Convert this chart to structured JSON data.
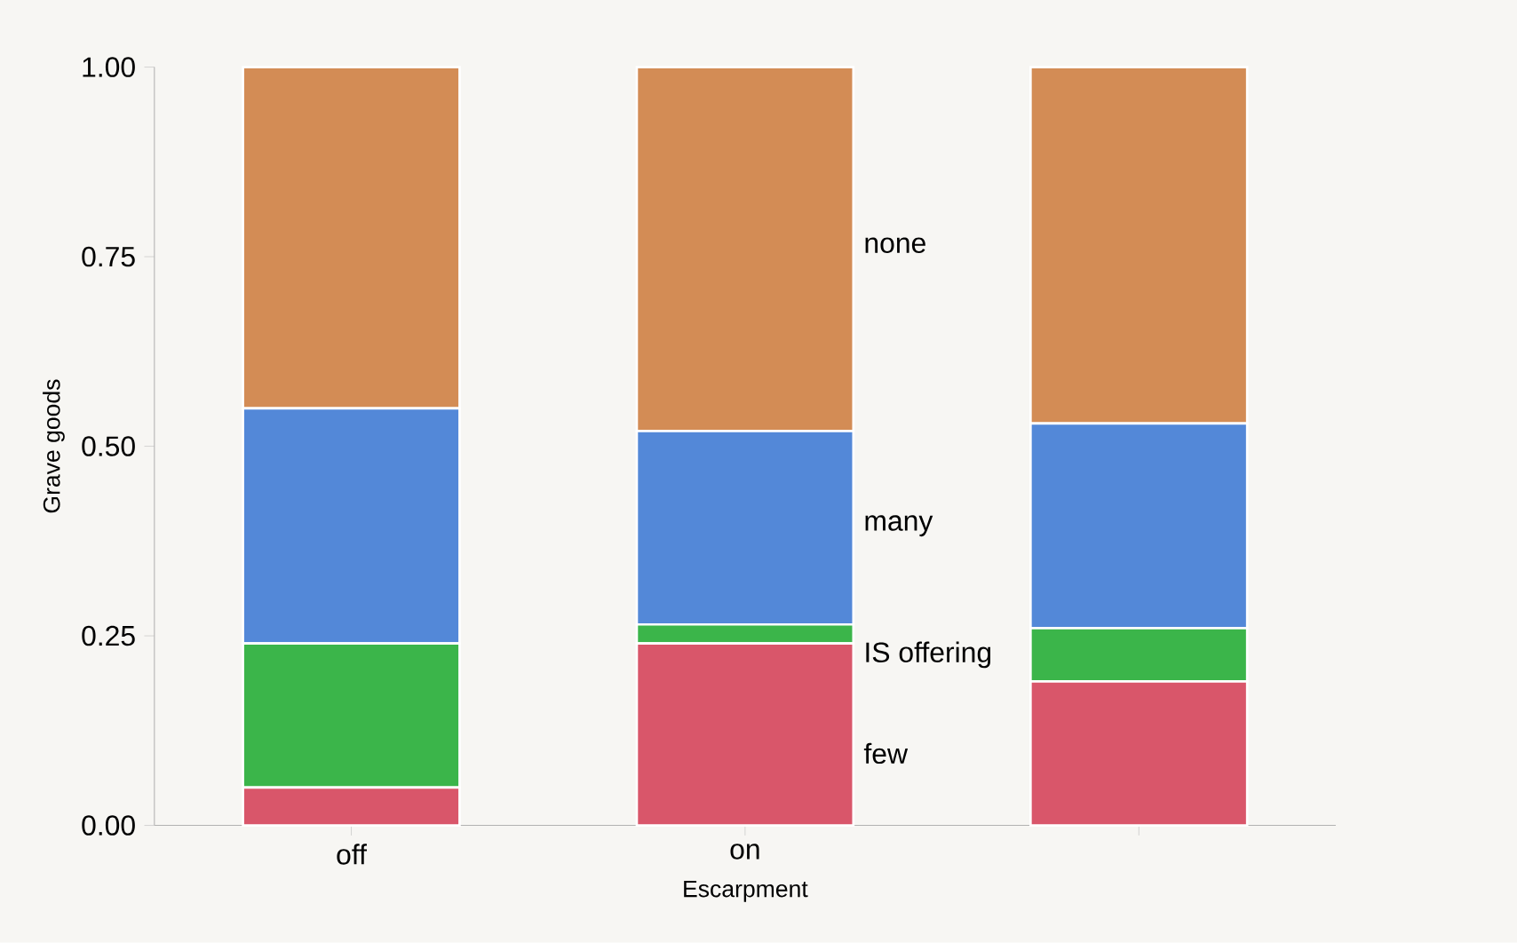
{
  "chart_data": {
    "type": "bar",
    "stacked": true,
    "xlabel": "Escarpment",
    "ylabel": "Grave goods",
    "categories": [
      "off",
      "on",
      null
    ],
    "series": [
      {
        "name": "few",
        "color": "#d9566a",
        "values": [
          0.05,
          0.24,
          0.19
        ]
      },
      {
        "name": "IS offering",
        "color": "#3bb54a",
        "values": [
          0.19,
          0.025,
          0.07
        ]
      },
      {
        "name": "many",
        "color": "#5388d8",
        "values": [
          0.31,
          0.255,
          0.27
        ]
      },
      {
        "name": "none",
        "color": "#d38c55",
        "values": [
          0.45,
          0.48,
          0.47
        ]
      }
    ],
    "ylim": [
      0,
      1
    ],
    "yticks": [
      {
        "value": 0,
        "label": "0.00"
      },
      {
        "value": 0.25,
        "label": "0.25"
      },
      {
        "value": 0.5,
        "label": "0.50"
      },
      {
        "value": 0.75,
        "label": "0.75"
      },
      {
        "value": 1,
        "label": "1.00"
      }
    ],
    "grid": false,
    "legend": false
  }
}
